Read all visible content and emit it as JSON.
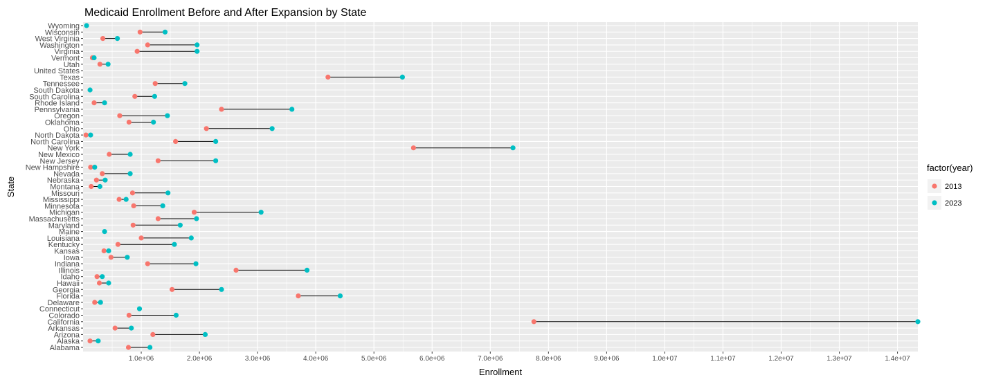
{
  "chart_data": {
    "type": "dumbbell",
    "title": "Medicaid Enrollment Before and After Expansion by State",
    "xlabel": "Enrollment",
    "ylabel": "State",
    "xlim": [
      0,
      14350000
    ],
    "x_ticks": [
      1000000,
      2000000,
      3000000,
      4000000,
      5000000,
      6000000,
      7000000,
      8000000,
      9000000,
      10000000,
      11000000,
      12000000,
      13000000,
      14000000
    ],
    "x_tick_labels": [
      "1.0e+06",
      "2.0e+06",
      "3.0e+06",
      "4.0e+06",
      "5.0e+06",
      "6.0e+06",
      "7.0e+06",
      "8.0e+06",
      "9.0e+06",
      "1.0e+07",
      "1.1e+07",
      "1.2e+07",
      "1.3e+07",
      "1.4e+07"
    ],
    "grid": true,
    "legend": {
      "title": "factor(year)",
      "position": "right",
      "items": [
        {
          "label": "2013",
          "color": "#F8766D"
        },
        {
          "label": "2023",
          "color": "#00BFC4"
        }
      ]
    },
    "colors": {
      "y2013": "#F8766D",
      "y2023": "#00BFC4",
      "panel": "#EBEBEB",
      "grid": "#FFFFFF",
      "segment": "#000000"
    },
    "states": [
      {
        "name": "Alabama",
        "y2013": 780000,
        "y2023": 1150000
      },
      {
        "name": "Alaska",
        "y2013": 120000,
        "y2023": 260000
      },
      {
        "name": "Arizona",
        "y2013": 1200000,
        "y2023": 2100000
      },
      {
        "name": "Arkansas",
        "y2013": 550000,
        "y2023": 830000
      },
      {
        "name": "California",
        "y2013": 7750000,
        "y2023": 14350000
      },
      {
        "name": "Colorado",
        "y2013": 790000,
        "y2023": 1600000
      },
      {
        "name": "Connecticut",
        "y2013": null,
        "y2023": 970000
      },
      {
        "name": "Delaware",
        "y2013": 200000,
        "y2023": 300000
      },
      {
        "name": "Florida",
        "y2013": 3700000,
        "y2023": 4420000
      },
      {
        "name": "Georgia",
        "y2013": 1530000,
        "y2023": 2380000
      },
      {
        "name": "Hawaii",
        "y2013": 280000,
        "y2023": 440000
      },
      {
        "name": "Idaho",
        "y2013": 240000,
        "y2023": 330000
      },
      {
        "name": "Illinois",
        "y2013": 2630000,
        "y2023": 3850000
      },
      {
        "name": "Indiana",
        "y2013": 1110000,
        "y2023": 1940000
      },
      {
        "name": "Iowa",
        "y2013": 480000,
        "y2023": 760000
      },
      {
        "name": "Kansas",
        "y2013": 360000,
        "y2023": 440000
      },
      {
        "name": "Kentucky",
        "y2013": 600000,
        "y2023": 1570000
      },
      {
        "name": "Louisiana",
        "y2013": 1000000,
        "y2023": 1860000
      },
      {
        "name": "Maine",
        "y2013": null,
        "y2023": 370000
      },
      {
        "name": "Maryland",
        "y2013": 860000,
        "y2023": 1670000
      },
      {
        "name": "Massachusetts",
        "y2013": 1290000,
        "y2023": 1950000
      },
      {
        "name": "Michigan",
        "y2013": 1910000,
        "y2023": 3060000
      },
      {
        "name": "Minnesota",
        "y2013": 870000,
        "y2023": 1370000
      },
      {
        "name": "Mississippi",
        "y2013": 620000,
        "y2023": 740000
      },
      {
        "name": "Missouri",
        "y2013": 850000,
        "y2023": 1460000
      },
      {
        "name": "Montana",
        "y2013": 140000,
        "y2023": 290000
      },
      {
        "name": "Nebraska",
        "y2013": 230000,
        "y2023": 380000
      },
      {
        "name": "Nevada",
        "y2013": 330000,
        "y2023": 810000
      },
      {
        "name": "New Hampshire",
        "y2013": 130000,
        "y2023": 200000
      },
      {
        "name": "New Jersey",
        "y2013": 1290000,
        "y2023": 2280000
      },
      {
        "name": "New Mexico",
        "y2013": 450000,
        "y2023": 810000
      },
      {
        "name": "New York",
        "y2013": 5680000,
        "y2023": 7390000
      },
      {
        "name": "North Carolina",
        "y2013": 1590000,
        "y2023": 2280000
      },
      {
        "name": "North Dakota",
        "y2013": 50000,
        "y2023": 130000
      },
      {
        "name": "Ohio",
        "y2013": 2120000,
        "y2023": 3250000
      },
      {
        "name": "Oklahoma",
        "y2013": 790000,
        "y2023": 1210000
      },
      {
        "name": "Oregon",
        "y2013": 630000,
        "y2023": 1450000
      },
      {
        "name": "Pennsylvania",
        "y2013": 2380000,
        "y2023": 3590000
      },
      {
        "name": "Rhode Island",
        "y2013": 190000,
        "y2023": 370000
      },
      {
        "name": "South Carolina",
        "y2013": 890000,
        "y2023": 1230000
      },
      {
        "name": "South Dakota",
        "y2013": null,
        "y2023": 120000
      },
      {
        "name": "Tennessee",
        "y2013": 1240000,
        "y2023": 1750000
      },
      {
        "name": "Texas",
        "y2013": 4210000,
        "y2023": 5490000
      },
      {
        "name": "United States",
        "y2013": null,
        "y2023": null
      },
      {
        "name": "Utah",
        "y2013": 290000,
        "y2023": 430000
      },
      {
        "name": "Vermont",
        "y2013": 160000,
        "y2023": 190000
      },
      {
        "name": "Virginia",
        "y2013": 930000,
        "y2023": 1960000
      },
      {
        "name": "Washington",
        "y2013": 1110000,
        "y2023": 1960000
      },
      {
        "name": "West Virginia",
        "y2013": 340000,
        "y2023": 590000
      },
      {
        "name": "Wisconsin",
        "y2013": 980000,
        "y2023": 1410000
      },
      {
        "name": "Wyoming",
        "y2013": null,
        "y2023": 60000
      }
    ]
  }
}
